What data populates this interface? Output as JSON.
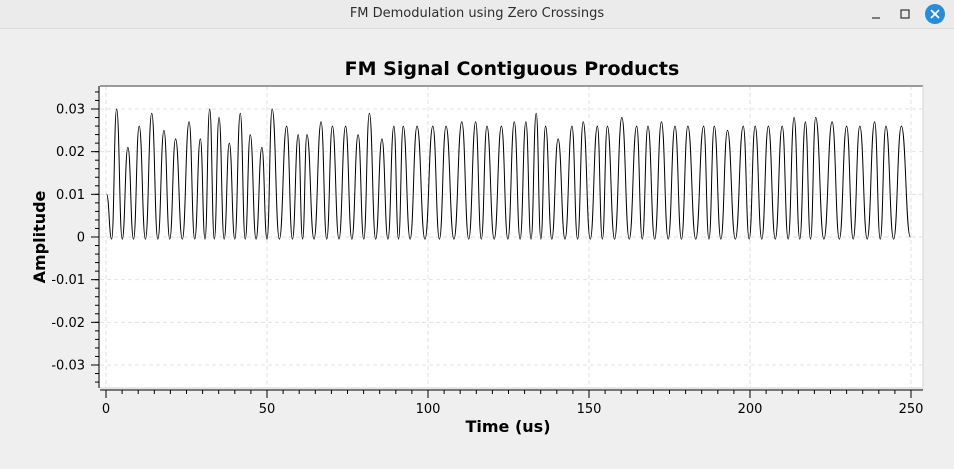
{
  "window": {
    "title": "FM Demodulation using Zero Crossings",
    "minimize_icon": "minimize-icon",
    "maximize_icon": "maximize-icon",
    "close_icon": "close-icon"
  },
  "chart_data": {
    "type": "line",
    "title": "FM Signal Contiguous Products",
    "xlabel": "Time (us)",
    "ylabel": "Amplitude",
    "xlim": [
      0,
      250
    ],
    "ylim": [
      -0.035,
      0.035
    ],
    "x_ticks": [
      0,
      50,
      100,
      150,
      200,
      250
    ],
    "y_ticks": [
      0.03,
      0.02,
      0.01,
      0,
      -0.01,
      -0.02,
      -0.03
    ],
    "x_tick_labels": [
      "0",
      "50",
      "100",
      "150",
      "200",
      "250"
    ],
    "y_tick_labels": [
      "0.03",
      "0.02",
      "0.01",
      "0",
      "-0.01",
      "-0.02",
      "-0.03"
    ],
    "grid": true,
    "line_color": "#000000",
    "series": [
      {
        "name": "",
        "peaks": [
          [
            3.3,
            0.03
          ],
          [
            6.8,
            0.021
          ],
          [
            10.3,
            0.026
          ],
          [
            14.2,
            0.029
          ],
          [
            18.0,
            0.025
          ],
          [
            21.6,
            0.023
          ],
          [
            25.8,
            0.027
          ],
          [
            29.3,
            0.023
          ],
          [
            32.2,
            0.03
          ],
          [
            35.1,
            0.028
          ],
          [
            38.3,
            0.022
          ],
          [
            41.7,
            0.029
          ],
          [
            44.8,
            0.024
          ],
          [
            48.4,
            0.021
          ],
          [
            51.6,
            0.03
          ],
          [
            56.1,
            0.026
          ],
          [
            59.7,
            0.024
          ],
          [
            62.4,
            0.024
          ],
          [
            66.8,
            0.027
          ],
          [
            70.3,
            0.026
          ],
          [
            74.4,
            0.026
          ],
          [
            78.3,
            0.024
          ],
          [
            81.8,
            0.029
          ],
          [
            85.7,
            0.023
          ],
          [
            89.4,
            0.026
          ],
          [
            92.3,
            0.026
          ],
          [
            96.6,
            0.026
          ],
          [
            101.5,
            0.026
          ],
          [
            105.6,
            0.026
          ],
          [
            110.5,
            0.027
          ],
          [
            114.8,
            0.027
          ],
          [
            118.3,
            0.026
          ],
          [
            122.8,
            0.026
          ],
          [
            126.8,
            0.027
          ],
          [
            130.4,
            0.027
          ],
          [
            133.6,
            0.029
          ],
          [
            136.5,
            0.026
          ],
          [
            140.4,
            0.023
          ],
          [
            144.7,
            0.026
          ],
          [
            148.2,
            0.027
          ],
          [
            152.6,
            0.026
          ],
          [
            155.7,
            0.026
          ],
          [
            160.2,
            0.028
          ],
          [
            164.8,
            0.026
          ],
          [
            168.3,
            0.026
          ],
          [
            172.5,
            0.027
          ],
          [
            176.7,
            0.026
          ],
          [
            180.7,
            0.026
          ],
          [
            185.6,
            0.026
          ],
          [
            188.9,
            0.026
          ],
          [
            193.0,
            0.025
          ],
          [
            197.9,
            0.026
          ],
          [
            201.6,
            0.026
          ],
          [
            205.7,
            0.026
          ],
          [
            210.0,
            0.026
          ],
          [
            213.7,
            0.028
          ],
          [
            217.2,
            0.027
          ],
          [
            220.4,
            0.028
          ],
          [
            225.5,
            0.027
          ],
          [
            230.0,
            0.026
          ],
          [
            234.1,
            0.026
          ],
          [
            238.7,
            0.027
          ],
          [
            242.2,
            0.026
          ],
          [
            247.0,
            0.026
          ]
        ],
        "start_value": 0.01,
        "end_value": 0.0,
        "trough_value": -0.0005
      }
    ]
  }
}
